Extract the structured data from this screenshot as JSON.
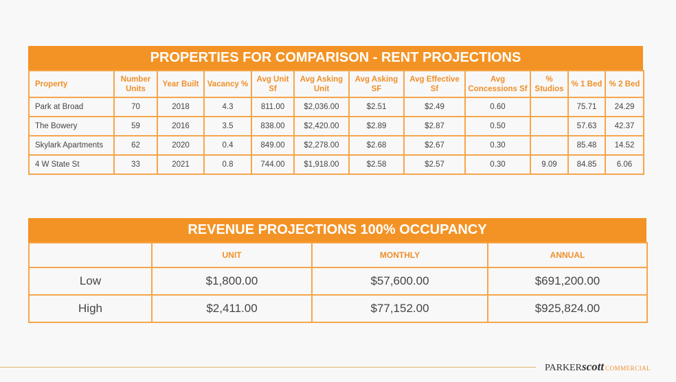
{
  "comparison": {
    "title": "PROPERTIES FOR COMPARISON - RENT PROJECTIONS",
    "headers": [
      "Property",
      "Number Units",
      "Year Built",
      "Vacancy %",
      "Avg Unit Sf",
      "Avg Asking Unit",
      "Avg Asking SF",
      "Avg Effective Sf",
      "Avg Concessions Sf",
      "% Studios",
      "% 1 Bed",
      "% 2 Bed"
    ],
    "rows": [
      [
        "Park at Broad",
        "70",
        "2018",
        "4.3",
        "811.00",
        "$2,036.00",
        "$2.51",
        "$2.49",
        "0.60",
        "",
        "75.71",
        "24.29"
      ],
      [
        "The Bowery",
        "59",
        "2016",
        "3.5",
        "838.00",
        "$2,420.00",
        "$2.89",
        "$2.87",
        "0.50",
        "",
        "57.63",
        "42.37"
      ],
      [
        "Skylark Apartments",
        "62",
        "2020",
        "0.4",
        "849.00",
        "$2,278.00",
        "$2.68",
        "$2.67",
        "0.30",
        "",
        "85.48",
        "14.52"
      ],
      [
        "4 W State St",
        "33",
        "2021",
        "0.8",
        "744.00",
        "$1,918.00",
        "$2.58",
        "$2.57",
        "0.30",
        "9.09",
        "84.85",
        "6.06"
      ]
    ]
  },
  "revenue": {
    "title": "REVENUE PROJECTIONS 100% OCCUPANCY",
    "headers": [
      "",
      "UNIT",
      "MONTHLY",
      "ANNUAL"
    ],
    "rows": [
      [
        "Low",
        "$1,800.00",
        "$57,600.00",
        "$691,200.00"
      ],
      [
        "High",
        "$2,411.00",
        "$77,152.00",
        "$925,824.00"
      ]
    ]
  },
  "footer": {
    "logo_parker": "PARKER",
    "logo_scott": "scott",
    "logo_commercial": "COMMERCIAL"
  },
  "colors": {
    "accent": "#f39325",
    "border": "#f5a54a"
  }
}
